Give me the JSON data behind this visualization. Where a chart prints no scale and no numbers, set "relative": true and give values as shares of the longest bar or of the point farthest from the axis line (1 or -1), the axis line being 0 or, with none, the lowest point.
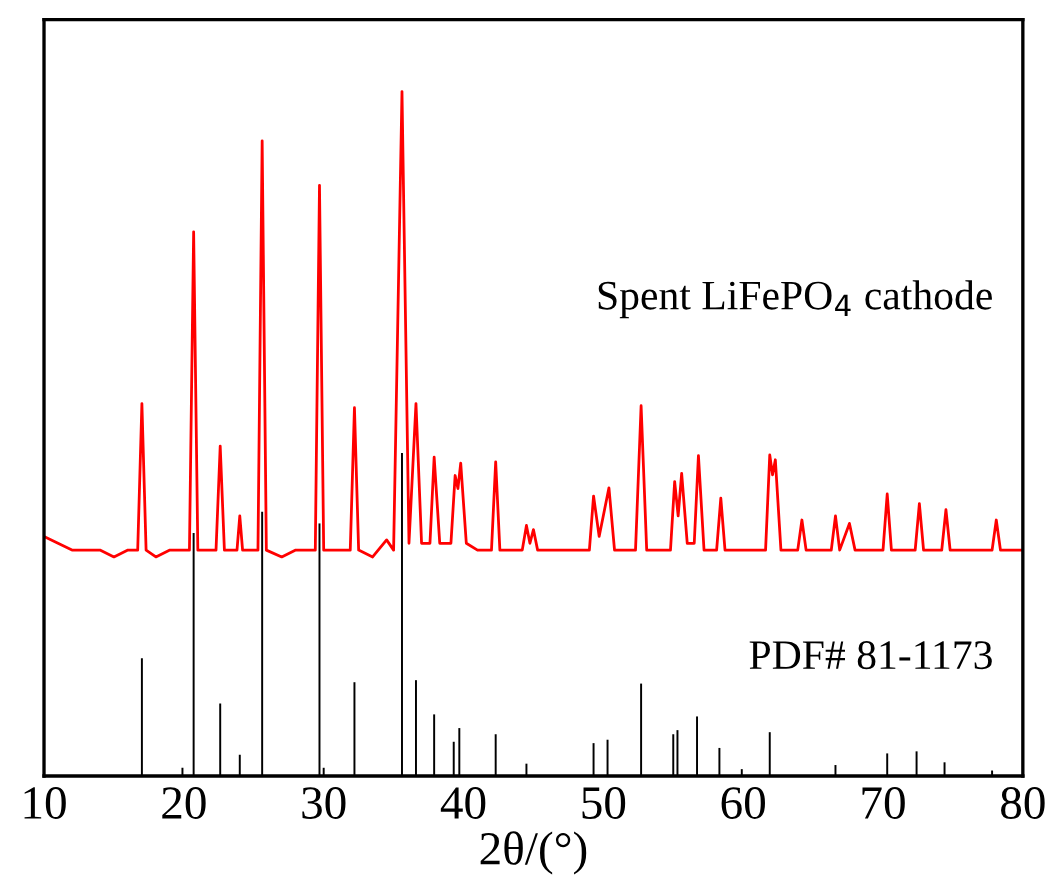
{
  "chart_data": {
    "type": "line",
    "relative": true,
    "xlabel": "2θ/(°)",
    "xlim": [
      10,
      80
    ],
    "xticks": [
      10,
      20,
      30,
      40,
      50,
      60,
      70,
      80
    ],
    "grid": false,
    "legend": false,
    "tick_labels": "x",
    "series": [
      {
        "name": "Spent LiFePO$_{4}$ cathode",
        "color": "#ff0000",
        "x": [
          10,
          11,
          12,
          13,
          14,
          15,
          16,
          16.7,
          17.0,
          17.3,
          18,
          19,
          20.4,
          20.7,
          21.0,
          22.3,
          22.6,
          22.9,
          23.8,
          24.0,
          24.2,
          25.3,
          25.6,
          25.9,
          27,
          28,
          29.4,
          29.7,
          30.0,
          31,
          31.9,
          32.2,
          32.5,
          33.5,
          34.5,
          35.0,
          35.6,
          36.1,
          36.6,
          37.0,
          37.6,
          37.9,
          38.3,
          39.1,
          39.4,
          39.6,
          39.8,
          40.2,
          41,
          42.0,
          42.3,
          42.6,
          44.2,
          44.5,
          44.75,
          45.0,
          45.3,
          46,
          47,
          48,
          49.0,
          49.3,
          49.7,
          50.4,
          50.8,
          52.3,
          52.7,
          53.1,
          54.8,
          55.1,
          55.35,
          55.6,
          56.0,
          56.5,
          56.8,
          57.2,
          58.1,
          58.4,
          58.7,
          60,
          61.6,
          61.9,
          62.1,
          62.3,
          62.7,
          63.9,
          64.2,
          64.5,
          66.3,
          66.6,
          66.9,
          67.6,
          68,
          69,
          70.0,
          70.3,
          70.6,
          72.3,
          72.6,
          72.9,
          74.2,
          74.5,
          74.8,
          76,
          77.8,
          78.1,
          78.4,
          79,
          80
        ],
        "values": [
          0.35,
          0.34,
          0.33,
          0.33,
          0.33,
          0.32,
          0.33,
          0.33,
          0.544,
          0.33,
          0.32,
          0.33,
          0.33,
          0.795,
          0.33,
          0.33,
          0.482,
          0.33,
          0.33,
          0.38,
          0.33,
          0.33,
          0.928,
          0.33,
          0.32,
          0.33,
          0.33,
          0.863,
          0.33,
          0.33,
          0.33,
          0.538,
          0.33,
          0.32,
          0.345,
          0.33,
          1.0,
          0.34,
          0.544,
          0.34,
          0.34,
          0.466,
          0.34,
          0.34,
          0.439,
          0.42,
          0.457,
          0.34,
          0.33,
          0.33,
          0.459,
          0.33,
          0.33,
          0.366,
          0.34,
          0.36,
          0.33,
          0.33,
          0.33,
          0.33,
          0.33,
          0.409,
          0.35,
          0.421,
          0.33,
          0.33,
          0.541,
          0.33,
          0.33,
          0.43,
          0.38,
          0.442,
          0.34,
          0.34,
          0.468,
          0.33,
          0.33,
          0.406,
          0.33,
          0.33,
          0.33,
          0.469,
          0.44,
          0.462,
          0.33,
          0.33,
          0.374,
          0.33,
          0.33,
          0.38,
          0.33,
          0.369,
          0.33,
          0.33,
          0.33,
          0.412,
          0.33,
          0.33,
          0.398,
          0.33,
          0.33,
          0.389,
          0.33,
          0.33,
          0.33,
          0.374,
          0.33,
          0.33,
          0.33
        ]
      },
      {
        "name": "PDF# 81-1173",
        "type": "bar",
        "color": "#000000",
        "x": [
          17.0,
          19.9,
          20.7,
          22.6,
          24.0,
          25.6,
          29.7,
          30.0,
          32.2,
          35.6,
          36.6,
          37.9,
          39.3,
          39.7,
          42.3,
          44.5,
          49.3,
          50.3,
          52.7,
          55.0,
          55.3,
          56.7,
          58.3,
          59.9,
          61.9,
          66.6,
          70.3,
          72.4,
          74.4,
          77.8
        ],
        "values": [
          0.172,
          0.012,
          0.355,
          0.106,
          0.031,
          0.386,
          0.369,
          0.012,
          0.137,
          0.472,
          0.14,
          0.09,
          0.05,
          0.07,
          0.061,
          0.018,
          0.048,
          0.053,
          0.135,
          0.061,
          0.067,
          0.087,
          0.041,
          0.01,
          0.064,
          0.016,
          0.033,
          0.036,
          0.02,
          0.008
        ]
      }
    ]
  }
}
